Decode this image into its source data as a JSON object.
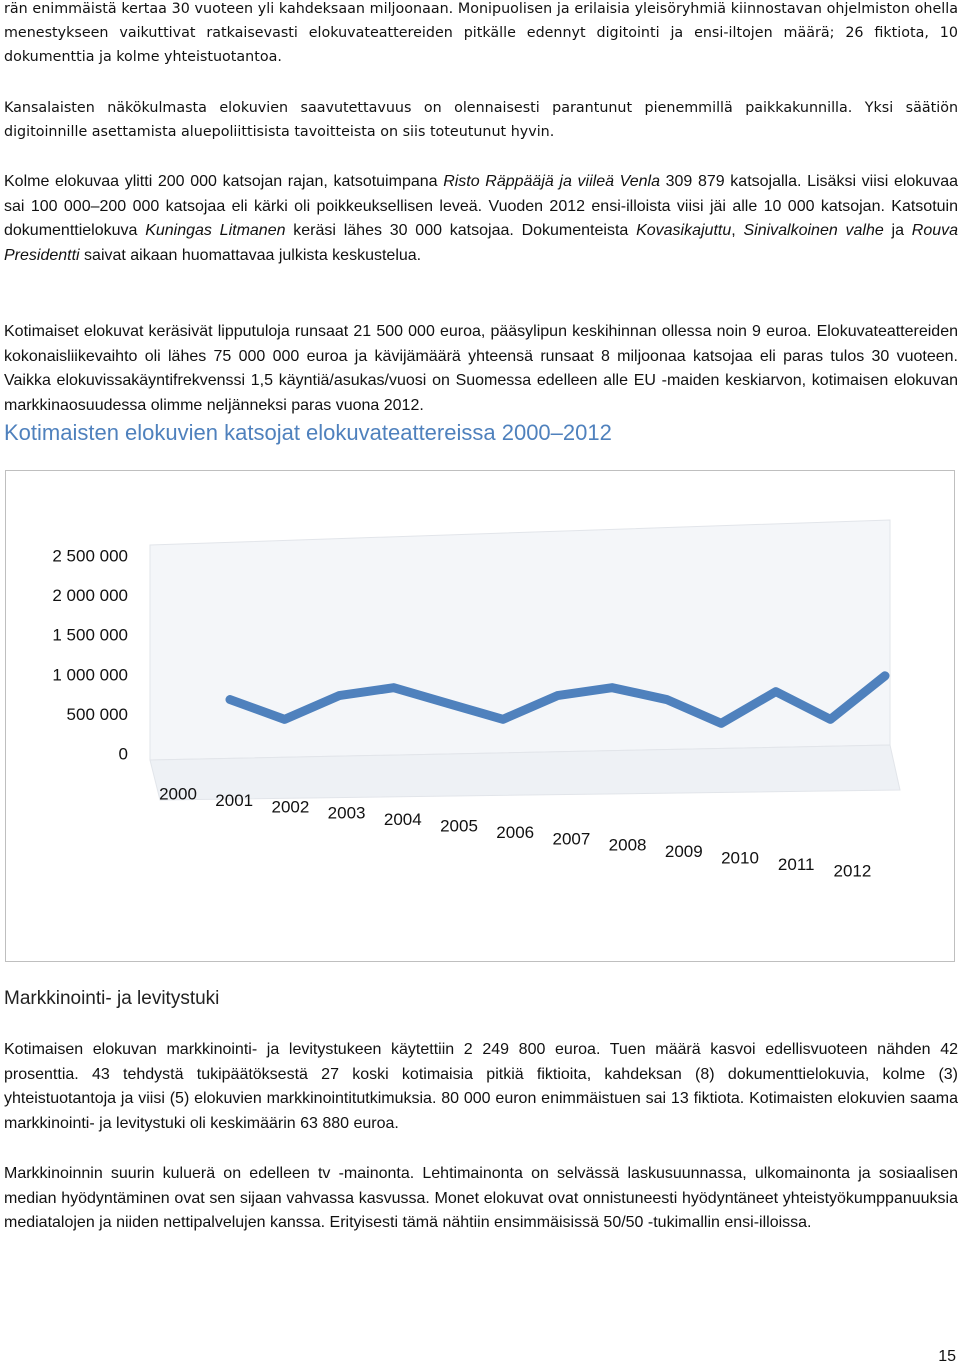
{
  "paragraphs_top": [
    [
      {
        "text": "rän enimmäistä kertaa 30 vuoteen yli kahdeksaan miljoonaan. Monipuolisen ja erilaisia yleisöryhmiä kiinnostavan ohjelmiston ohella menestykseen vaikuttivat ratkaisevasti elokuvateattereiden pitkälle edennyt digitointi ja ensi-iltojen määrä; 26 fiktiota, 10 dokumenttia ja kolme yhteistuotantoa."
      }
    ],
    [
      {
        "text": "Kansalaisten näkökulmasta elokuvien saavutettavuus on olennaisesti parantunut pienemmillä paikkakunnilla. Yksi säätiön digitoinnille asettamista aluepoliittisista tavoitteista on siis toteutunut hyvin."
      }
    ],
    [
      {
        "text": "Kolme elokuvaa ylitti 200 000 katsojan rajan, katsotuimpana "
      },
      {
        "text": "Risto Räppääjä ja viileä Venla",
        "italic": true
      },
      {
        "text": " 309 879 katsojalla. Lisäksi viisi elokuvaa sai 100 000–200 000 katsojaa eli kärki oli poikkeuksellisen leveä. Vuoden 2012 ensi-illoista viisi jäi alle 10 000 katsojan. Katsotuin dokumenttielokuva "
      },
      {
        "text": "Kuningas Litmanen",
        "italic": true
      },
      {
        "text": " keräsi lähes 30 000 katsojaa. Dokumenteista "
      },
      {
        "text": "Kovasikajuttu",
        "italic": true
      },
      {
        "text": ", "
      },
      {
        "text": "Sinivalkoinen valhe",
        "italic": true
      },
      {
        "text": " ja "
      },
      {
        "text": "Rouva Presidentti",
        "italic": true
      },
      {
        "text": " saivat aikaan huomattavaa julkista keskustelua."
      }
    ],
    [
      {
        "text": "Kotimaiset elokuvat keräsivät lipputuloja runsaat 21 500 000 euroa, pääsylipun keskihinnan ollessa noin 9 euroa. Elokuvateattereiden kokonaisliikevaihto oli lähes 75 000 000 euroa ja kävijämäärä yhteensä runsaat 8 miljoonaa katsojaa eli paras tulos 30 vuoteen.  Vaikka elokuvissakäyntifrekvenssi 1,5 käyntiä/asukas/vuosi on Suomessa edelleen alle EU -maiden keskiarvon, kotimaisen elokuvan markkinaosuudessa olimme neljänneksi paras vuona 2012."
      }
    ]
  ],
  "chart_heading": "Kotimaisten elokuvien katsojat elokuvateattereissa 2000–2012",
  "chart_data": {
    "type": "line",
    "categories": [
      "2000",
      "2001",
      "2002",
      "2003",
      "2004",
      "2005",
      "2006",
      "2007",
      "2008",
      "2009",
      "2010",
      "2011",
      "2012"
    ],
    "values": [
      700000,
      450000,
      750000,
      850000,
      650000,
      450000,
      750000,
      850000,
      700000,
      400000,
      800000,
      450000,
      1000000
    ],
    "color": "#4f81bd",
    "ylim": [
      0,
      2500000
    ],
    "yticks": [
      0,
      {
        "value": 500000,
        "label": "500 000"
      },
      {
        "value": 1000000,
        "label": "1 000 000"
      },
      {
        "value": 1500000,
        "label": "1 500 000"
      },
      {
        "value": 2000000,
        "label": "2 000 000"
      },
      {
        "value": 2500000,
        "label": "2 500 000"
      }
    ],
    "grid": false
  },
  "section_heading": "Markkinointi- ja levitystuki",
  "paragraphs_bottom": [
    [
      {
        "text": "Kotimaisen elokuvan markkinointi- ja levitystukeen käytettiin 2 249 800 euroa. Tuen määrä kasvoi edellisvuoteen nähden 42 prosenttia. 43 tehdystä tukipäätöksestä 27 koski kotimaisia pitkiä fiktioita, kahdeksan (8) dokumenttielokuvia, kolme (3) yhteistuotantoja ja viisi (5) elokuvien markkinointitutkimuksia. 80 000 euron enimmäistuen sai 13 fiktiota. Kotimaisten elokuvien saama markkinointi- ja levitystuki oli keskimäärin 63 880 euroa."
      }
    ],
    [
      {
        "text": "Markkinoinnin suurin kuluerä on edelleen tv -mainonta. Lehtimainonta on selvässä laskusuunnassa, ulkomainonta ja sosiaalisen median hyödyntäminen ovat sen sijaan vahvassa kasvussa. Monet elokuvat ovat onnistuneesti hyödyntäneet yhteistyökumppanuuksia mediatalojen ja niiden nettipalvelujen kanssa. Erityisesti tämä nähtiin ensimmäisissä 50/50 -tukimallin ensi-illoissa."
      }
    ]
  ],
  "page_number": "15"
}
